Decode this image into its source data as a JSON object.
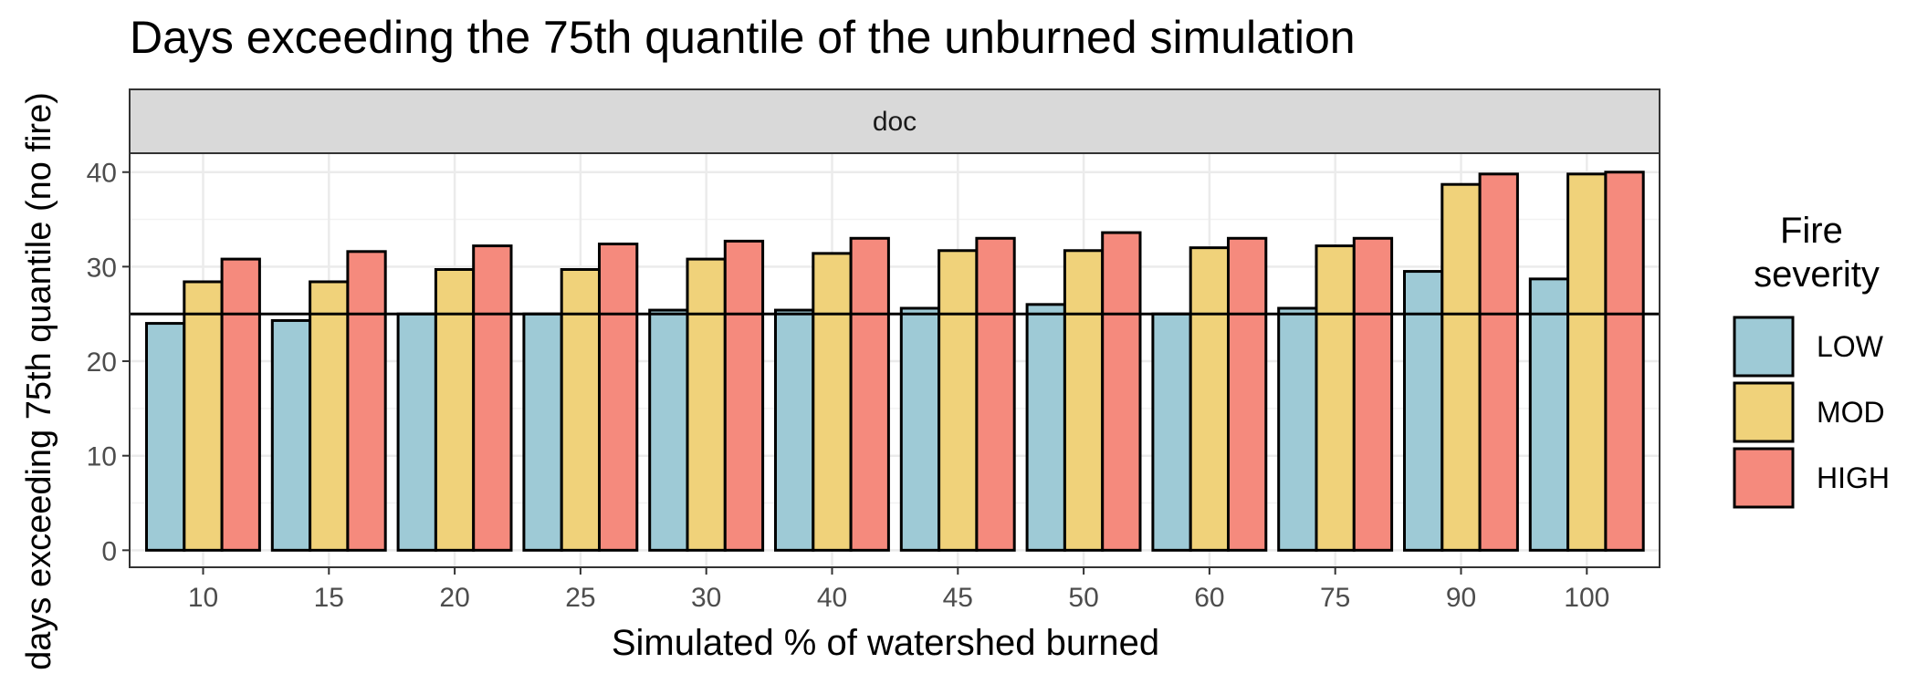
{
  "chart_data": {
    "type": "bar",
    "title": "Days exceeding the 75th quantile of the unburned simulation",
    "xlabel": "Simulated % of watershed burned",
    "ylabel": "days exceeding 75th quantile (no fire)",
    "facet_label": "doc",
    "categories": [
      "10",
      "15",
      "20",
      "25",
      "30",
      "40",
      "45",
      "50",
      "60",
      "75",
      "90",
      "100"
    ],
    "series": [
      {
        "name": "LOW",
        "color": "#9ECAD6",
        "values": [
          24,
          24.3,
          25,
          25,
          25.4,
          25.4,
          25.6,
          26,
          25,
          25.6,
          29.5,
          28.7
        ]
      },
      {
        "name": "MOD",
        "color": "#F0D27A",
        "values": [
          28.4,
          28.4,
          29.7,
          29.7,
          30.8,
          31.4,
          31.7,
          31.7,
          32,
          32.2,
          38.7,
          39.8
        ]
      },
      {
        "name": "HIGH",
        "color": "#F58A7D",
        "values": [
          30.8,
          31.6,
          32.2,
          32.4,
          32.7,
          33,
          33,
          33.6,
          33,
          33,
          39.8,
          40
        ]
      }
    ],
    "yticks": [
      0,
      10,
      20,
      30,
      40
    ],
    "ylim": [
      -1.8,
      42
    ],
    "reference_line": 25,
    "grid": true,
    "legend": {
      "title": "Fire\nseverity",
      "placement": "right"
    }
  }
}
